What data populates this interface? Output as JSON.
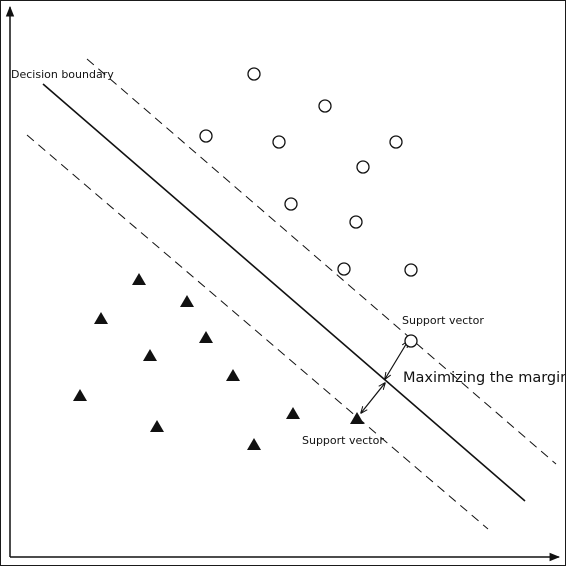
{
  "labels": {
    "decision_boundary": "Decision boundary",
    "support_vector_upper": "Support vector",
    "support_vector_lower": "Support vector",
    "margin": "Maximizing the margin"
  },
  "colors": {
    "ink": "#111111",
    "background": "#ffffff"
  },
  "marker_names": {
    "circle_class": "circle-marker",
    "triangle_class": "triangle-marker"
  }
}
